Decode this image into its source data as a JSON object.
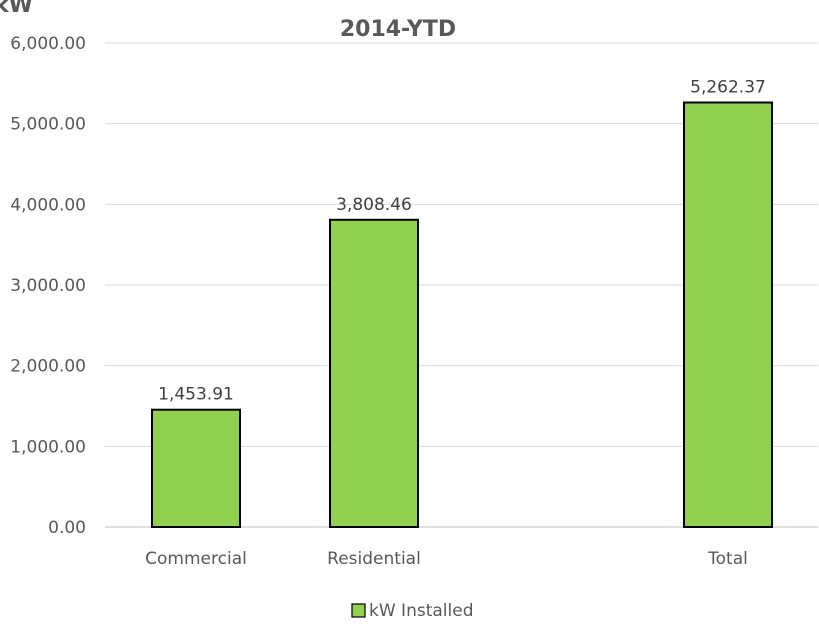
{
  "chart_data": {
    "type": "bar",
    "title": "2014-YTD",
    "ylabel": "kW",
    "categories": [
      "Commercial",
      "Residential",
      "Total"
    ],
    "series": [
      {
        "name": "kW Installed",
        "values": [
          1453.91,
          3808.46,
          5262.37
        ]
      }
    ],
    "data_labels": [
      "1,453.91",
      "3,808.46",
      "5,262.37"
    ],
    "y_ticks": [
      0,
      1000,
      2000,
      3000,
      4000,
      5000,
      6000
    ],
    "y_tick_labels": [
      "0.00",
      "1,000.00",
      "2,000.00",
      "3,000.00",
      "4,000.00",
      "5,000.00",
      "6,000.00"
    ],
    "ylim": [
      0,
      6000
    ],
    "grid": true,
    "legend": "bottom",
    "colors": {
      "bar_fill": "#92D050",
      "bar_stroke": "#000000",
      "grid": "#D9D9D9",
      "text": "#595959"
    }
  }
}
